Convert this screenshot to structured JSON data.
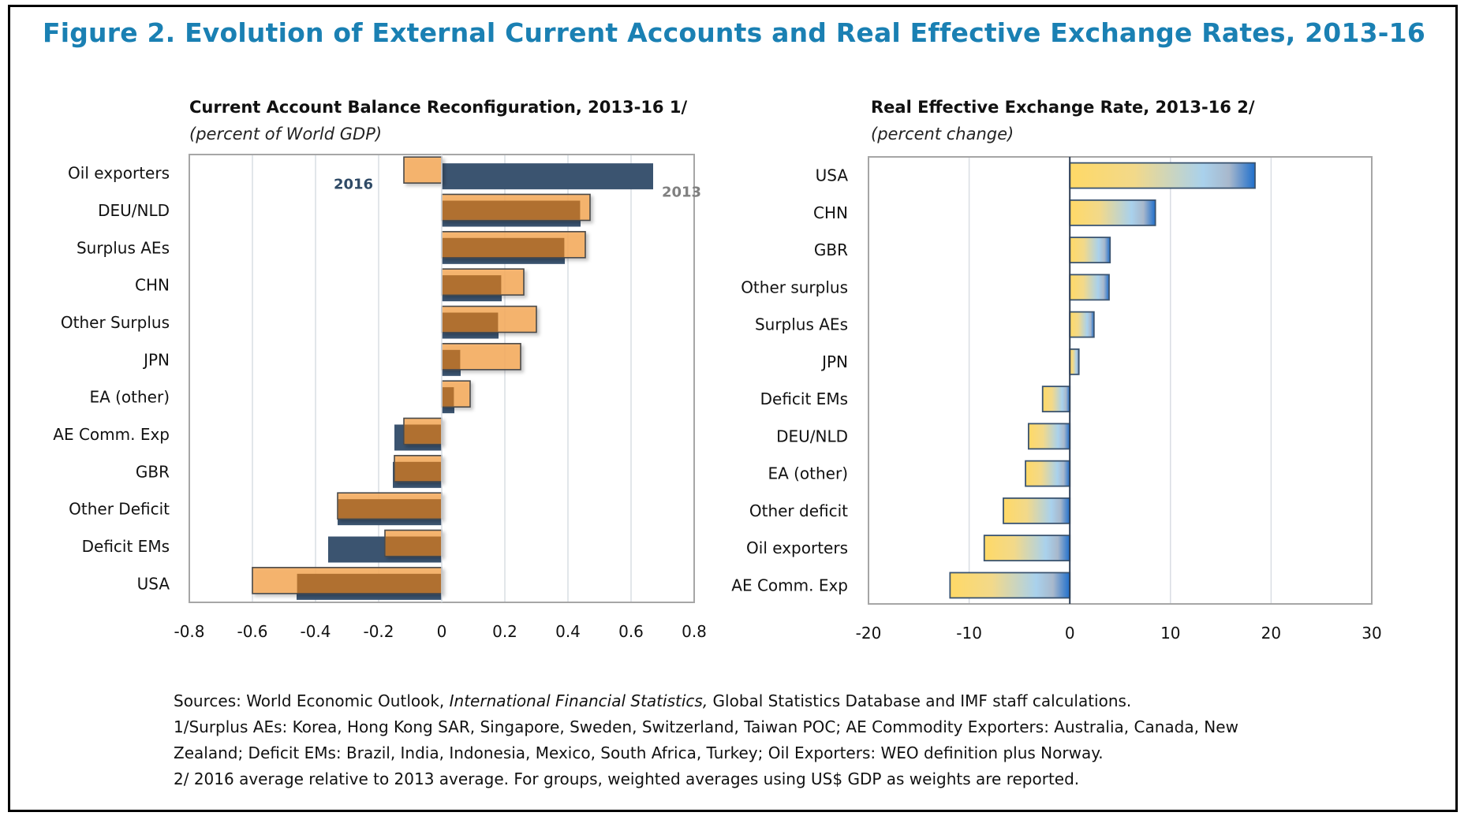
{
  "figure": {
    "title": "Figure 2. Evolution of External Current Accounts and Real Effective Exchange Rates, 2013-16",
    "title_color": "#1a80b3"
  },
  "chart_data": [
    {
      "type": "bar",
      "orientation": "horizontal",
      "title": "Current Account Balance Reconfiguration, 2013-16 1/",
      "subtitle": "(percent of World GDP)",
      "xlabel": "",
      "ylabel": "",
      "xlim": [
        -0.8,
        0.8
      ],
      "xticks": [
        "-0.8",
        "-0.6",
        "-0.4",
        "-0.2",
        "0",
        "0.2",
        "0.4",
        "0.6",
        "0.8"
      ],
      "xtick_values": [
        -0.8,
        -0.6,
        -0.4,
        -0.2,
        0,
        0.2,
        0.4,
        0.6,
        0.8
      ],
      "grid": true,
      "categories": [
        "Oil exporters",
        "DEU/NLD",
        "Surplus AEs",
        "CHN",
        "Other Surplus",
        "JPN",
        "EA (other)",
        "AE Comm. Exp",
        "GBR",
        "Other Deficit",
        "Deficit EMs",
        "USA"
      ],
      "series": [
        {
          "name": "2013",
          "color": "#3b5470",
          "values": [
            0.67,
            0.44,
            0.39,
            0.19,
            0.18,
            0.06,
            0.04,
            -0.15,
            -0.155,
            -0.33,
            -0.36,
            -0.46
          ]
        },
        {
          "name": "2016",
          "color": "#f6ad60",
          "values": [
            -0.12,
            0.47,
            0.455,
            0.26,
            0.3,
            0.25,
            0.09,
            -0.12,
            -0.15,
            -0.33,
            -0.18,
            -0.6
          ]
        }
      ],
      "overlap_color": "#b07030",
      "annotations": [
        {
          "text": "2016",
          "color": "#2f4a66",
          "anchor": "Oil exporters",
          "at": -0.28
        },
        {
          "text": "2013",
          "color": "#808080",
          "anchor": "Oil exporters",
          "at": 0.76
        }
      ]
    },
    {
      "type": "bar",
      "orientation": "horizontal",
      "title": "Real Effective Exchange Rate, 2013-16 2/",
      "subtitle": "(percent change)",
      "xlabel": "",
      "ylabel": "",
      "xlim": [
        -20,
        30
      ],
      "xticks": [
        "-20",
        "-10",
        "0",
        "10",
        "20",
        "30"
      ],
      "xtick_values": [
        -20,
        -10,
        0,
        10,
        20,
        30
      ],
      "grid": true,
      "categories": [
        "USA",
        "CHN",
        "GBR",
        "Other surplus",
        "Surplus AEs",
        "JPN",
        "Deficit EMs",
        "DEU/NLD",
        "EA (other)",
        "Other deficit",
        "Oil exporters",
        "AE Comm. Exp"
      ],
      "values": [
        18.4,
        8.5,
        4.0,
        3.9,
        2.4,
        0.9,
        -2.7,
        -4.1,
        -4.4,
        -6.6,
        -8.5,
        -11.9
      ],
      "gradient": [
        "#ffd966",
        "#a9d1ec",
        "#1f6fcc"
      ]
    }
  ],
  "footnotes": {
    "sources_prefix": "Sources: World Economic Outlook, ",
    "sources_italic": "International Financial Statistics,",
    "sources_suffix": " Global Statistics Database and IMF staff calculations.",
    "note1_line1": "1/Surplus AEs: Korea, Hong Kong SAR, Singapore, Sweden, Switzerland, Taiwan POC; AE Commodity Exporters: Australia, Canada, New",
    "note1_line2": "Zealand; Deficit EMs: Brazil, India, Indonesia, Mexico, South Africa, Turkey; Oil Exporters: WEO definition plus Norway.",
    "note2": "2/ 2016 average relative to 2013 average. For groups, weighted averages using US$ GDP as weights are reported."
  }
}
